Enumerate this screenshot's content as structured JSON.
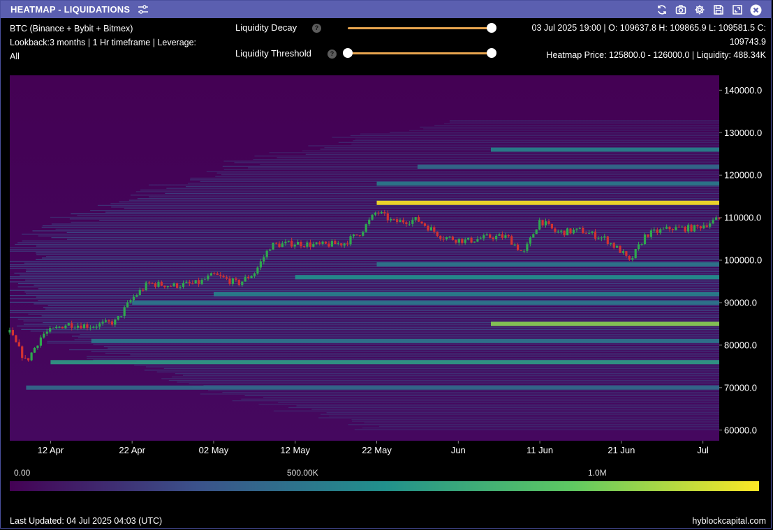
{
  "window": {
    "title": "HEATMAP - LIQUIDATIONS"
  },
  "toolbar_icons": [
    "refresh-icon",
    "camera-icon",
    "gear-icon",
    "save-icon",
    "expand-icon",
    "close-icon"
  ],
  "info_left": {
    "line1": "BTC (Binance + Bybit + Bitmex)",
    "line2": "Lookback:3 months | 1 Hr timeframe | Leverage:",
    "line3": "All"
  },
  "controls": {
    "decay_label": "Liquidity Decay",
    "threshold_label": "Liquidity Threshold",
    "help": "?",
    "decay_value": 1.0,
    "threshold_range": [
      0.0,
      1.0
    ]
  },
  "info_right": {
    "line1": "03 Jul 2025 19:00 | O: 109637.8 H: 109865.9 L: 109581.5 C:",
    "line2": "109743.9",
    "line3": "Heatmap Price: 125800.0 - 126000.0 | Liquidity: 488.34K"
  },
  "colorbar": {
    "labels": [
      "0.00",
      "500.00K",
      "1.0M"
    ],
    "stops": [
      "#440154",
      "#3b528b",
      "#21918c",
      "#5ec962",
      "#fde725"
    ]
  },
  "footer": {
    "updated": "Last Updated: 04 Jul 2025 04:03 (UTC)",
    "brand": "hyblockcapital.com"
  },
  "chart_data": {
    "type": "heatmap",
    "title": "",
    "xlabel": "",
    "ylabel": "",
    "x_ticks": [
      "12 Apr",
      "22 Apr",
      "02 May",
      "12 May",
      "22 May",
      "Jun",
      "11 Jun",
      "21 Jun",
      "Jul"
    ],
    "y_ticks": [
      "140000.0",
      "130000.0",
      "120000.0",
      "110000.0",
      "100000.0",
      "90000.0",
      "80000.0",
      "70000.0",
      "60000.0"
    ],
    "ylim": [
      57500,
      143500
    ],
    "xlim": [
      "2025-04-07",
      "2025-07-03"
    ],
    "price_series": {
      "name": "BTC",
      "x": [
        "2025-04-07",
        "2025-04-09",
        "2025-04-11",
        "2025-04-14",
        "2025-04-17",
        "2025-04-20",
        "2025-04-22",
        "2025-04-24",
        "2025-04-27",
        "2025-04-30",
        "2025-05-02",
        "2025-05-05",
        "2025-05-07",
        "2025-05-09",
        "2025-05-12",
        "2025-05-15",
        "2025-05-18",
        "2025-05-20",
        "2025-05-22",
        "2025-05-24",
        "2025-05-27",
        "2025-05-30",
        "2025-06-02",
        "2025-06-05",
        "2025-06-07",
        "2025-06-09",
        "2025-06-11",
        "2025-06-13",
        "2025-06-16",
        "2025-06-19",
        "2025-06-21",
        "2025-06-22",
        "2025-06-24",
        "2025-06-27",
        "2025-06-30",
        "2025-07-03"
      ],
      "y": [
        83000,
        76000,
        82500,
        85000,
        84500,
        85500,
        91000,
        94500,
        94000,
        94500,
        96500,
        94500,
        97000,
        103500,
        104000,
        103500,
        104000,
        106500,
        111500,
        109000,
        109500,
        105500,
        104500,
        105500,
        105500,
        101500,
        109500,
        106500,
        107000,
        105000,
        102000,
        99500,
        106000,
        107500,
        107500,
        109700
      ]
    },
    "liquidity_bands": [
      {
        "price": 113500,
        "intensity": 1.0,
        "start": "2025-05-22"
      },
      {
        "price": 85000,
        "intensity": 0.82,
        "start": "2025-06-05"
      },
      {
        "price": 76000,
        "intensity": 0.55,
        "start": "2025-04-12"
      },
      {
        "price": 96000,
        "intensity": 0.5,
        "start": "2025-05-12"
      },
      {
        "price": 92000,
        "intensity": 0.45,
        "start": "2025-05-02"
      },
      {
        "price": 90000,
        "intensity": 0.4,
        "start": "2025-04-22"
      },
      {
        "price": 126000,
        "intensity": 0.45,
        "start": "2025-06-05"
      },
      {
        "price": 118000,
        "intensity": 0.42,
        "start": "2025-05-22"
      },
      {
        "price": 122000,
        "intensity": 0.35,
        "start": "2025-05-27"
      },
      {
        "price": 81000,
        "intensity": 0.4,
        "start": "2025-04-17"
      },
      {
        "price": 70000,
        "intensity": 0.35,
        "start": "2025-04-09"
      },
      {
        "price": 99000,
        "intensity": 0.4,
        "start": "2025-05-22"
      }
    ]
  }
}
